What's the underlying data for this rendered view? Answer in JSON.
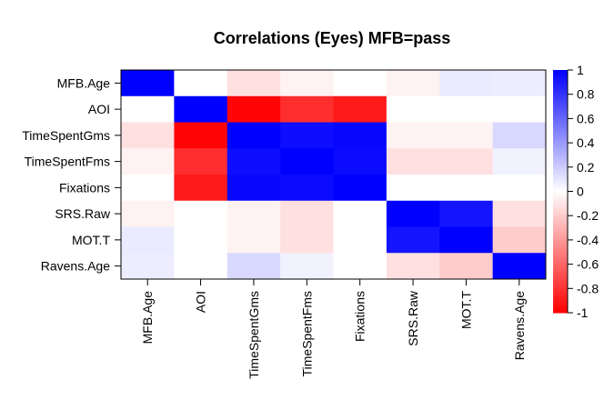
{
  "chart_data": {
    "type": "heatmap",
    "title": "Correlations (Eyes) MFB=pass",
    "row_labels": [
      "MFB.Age",
      "AOI",
      "TimeSpentGms",
      "TimeSpentFms",
      "Fixations",
      "SRS.Raw",
      "MOT.T",
      "Ravens.Age"
    ],
    "col_labels": [
      "MFB.Age",
      "AOI",
      "TimeSpentGms",
      "TimeSpentFms",
      "Fixations",
      "SRS.Raw",
      "MOT.T",
      "Ravens.Age"
    ],
    "values": [
      [
        1.0,
        0.0,
        -0.12,
        -0.05,
        0.0,
        -0.05,
        0.08,
        0.07
      ],
      [
        0.0,
        1.0,
        -0.98,
        -0.82,
        -0.9,
        0.0,
        0.0,
        0.0
      ],
      [
        -0.12,
        -0.98,
        1.0,
        0.95,
        0.97,
        -0.05,
        -0.05,
        0.15
      ],
      [
        -0.05,
        -0.82,
        0.95,
        1.0,
        0.96,
        -0.12,
        -0.12,
        0.05
      ],
      [
        0.0,
        -0.9,
        0.97,
        0.96,
        1.0,
        0.0,
        0.0,
        0.0
      ],
      [
        -0.05,
        0.0,
        -0.05,
        -0.12,
        0.0,
        1.0,
        0.92,
        -0.12
      ],
      [
        0.08,
        0.0,
        -0.05,
        -0.12,
        0.0,
        0.92,
        1.0,
        -0.2
      ],
      [
        0.07,
        0.0,
        0.15,
        0.05,
        0.0,
        -0.12,
        -0.2,
        1.0
      ]
    ],
    "colorbar": {
      "range": [
        -1,
        1
      ],
      "ticks": [
        "1",
        "0.8",
        "0.6",
        "0.4",
        "0.2",
        "0",
        "-0.2",
        "-0.4",
        "-0.6",
        "-0.8",
        "-1"
      ],
      "tick_values": [
        1,
        0.8,
        0.6,
        0.4,
        0.2,
        0,
        -0.2,
        -0.4,
        -0.6,
        -0.8,
        -1
      ],
      "low_color": "#ff0000",
      "mid_color": "#ffffff",
      "high_color": "#0000ff"
    }
  }
}
